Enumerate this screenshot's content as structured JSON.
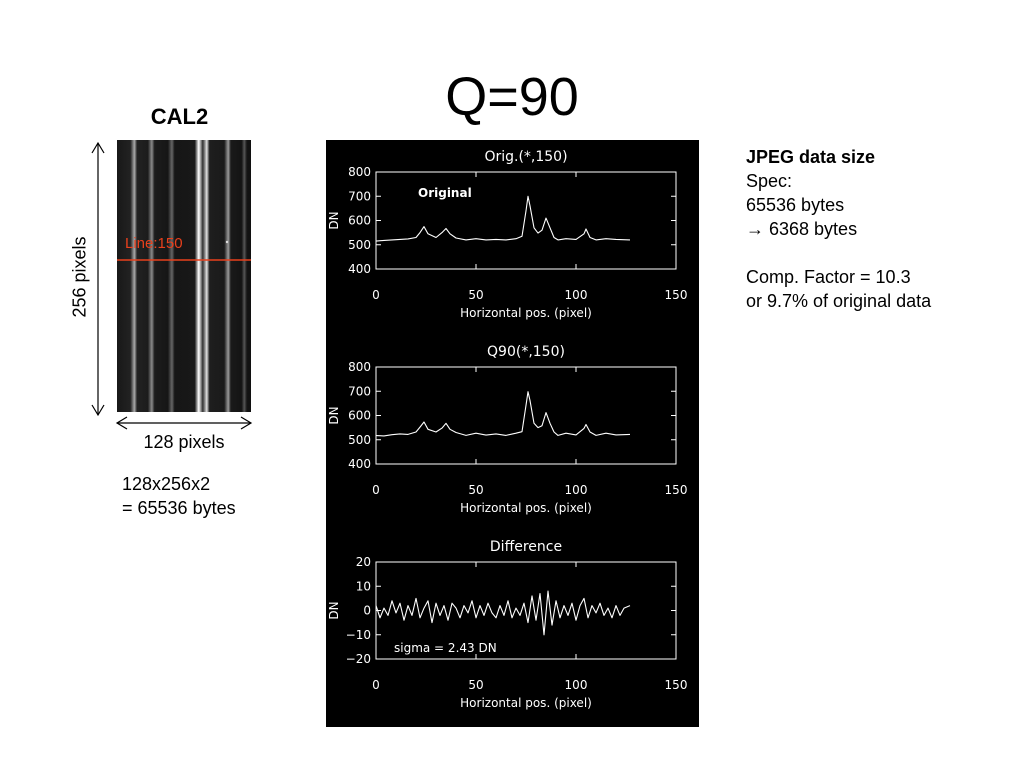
{
  "title": "Q=90",
  "cal_image": {
    "title": "CAL2",
    "line_label": "Line:150",
    "height_label": "256 pixels",
    "width_label": "128 pixels",
    "size_note_lines": [
      "128x256x2",
      "= 65536 bytes"
    ]
  },
  "info": {
    "heading": "JPEG data size",
    "spec_label": "Spec:",
    "spec_bytes": "65536 bytes",
    "compressed": "→ 6368 bytes",
    "comp_factor": "Comp. Factor  = 10.3",
    "percent": "or 9.7% of original data"
  },
  "colors": {
    "line_marker": "#e8401c",
    "plot_bg": "#000000",
    "plot_fg": "#ffffff"
  },
  "chart_data": [
    {
      "type": "line",
      "title": "Orig.(*,150)",
      "annotation": "Original",
      "xlabel": "Horizontal pos. (pixel)",
      "ylabel": "DN",
      "xlim": [
        0,
        150
      ],
      "ylim": [
        400,
        800
      ],
      "xticks": [
        0,
        50,
        100,
        150
      ],
      "yticks": [
        400,
        500,
        600,
        700,
        800
      ],
      "series": [
        {
          "x": [
            0,
            4,
            8,
            12,
            16,
            20,
            22,
            24,
            26,
            30,
            33,
            35,
            37,
            40,
            45,
            50,
            55,
            60,
            65,
            70,
            73,
            75,
            76,
            77,
            79,
            81,
            83,
            85,
            87,
            89,
            91,
            95,
            100,
            104,
            105,
            107,
            110,
            115,
            120,
            127
          ],
          "y": [
            515,
            518,
            520,
            522,
            524,
            530,
            550,
            575,
            545,
            530,
            550,
            567,
            545,
            528,
            520,
            525,
            520,
            522,
            520,
            525,
            535,
            640,
            700,
            660,
            570,
            548,
            560,
            610,
            570,
            530,
            520,
            525,
            522,
            545,
            565,
            530,
            520,
            525,
            522,
            520
          ]
        }
      ]
    },
    {
      "type": "line",
      "title": "Q90(*,150)",
      "xlabel": "Horizontal pos. (pixel)",
      "ylabel": "DN",
      "xlim": [
        0,
        150
      ],
      "ylim": [
        400,
        800
      ],
      "xticks": [
        0,
        50,
        100,
        150
      ],
      "yticks": [
        400,
        500,
        600,
        700,
        800
      ],
      "series": [
        {
          "x": [
            0,
            4,
            8,
            12,
            16,
            20,
            22,
            24,
            26,
            30,
            33,
            35,
            37,
            40,
            45,
            50,
            55,
            60,
            65,
            70,
            73,
            75,
            76,
            77,
            79,
            81,
            83,
            85,
            87,
            89,
            91,
            95,
            100,
            104,
            105,
            107,
            110,
            115,
            120,
            127
          ],
          "y": [
            517,
            516,
            521,
            524,
            522,
            532,
            552,
            573,
            543,
            532,
            548,
            568,
            543,
            530,
            518,
            527,
            519,
            524,
            518,
            527,
            533,
            642,
            698,
            662,
            568,
            550,
            558,
            612,
            568,
            532,
            518,
            527,
            520,
            547,
            563,
            532,
            518,
            527,
            520,
            522
          ]
        }
      ]
    },
    {
      "type": "line",
      "title": "Difference",
      "annotation": "sigma =    2.43 DN",
      "xlabel": "Horizontal pos. (pixel)",
      "ylabel": "DN",
      "xlim": [
        0,
        150
      ],
      "ylim": [
        -20,
        20
      ],
      "xticks": [
        0,
        50,
        100,
        150
      ],
      "yticks": [
        -20,
        -10,
        0,
        10,
        20
      ],
      "yticklabels": [
        "−20",
        "−10",
        "0",
        "10",
        "20"
      ],
      "series": [
        {
          "x": [
            0,
            2,
            4,
            6,
            8,
            10,
            12,
            14,
            16,
            18,
            20,
            22,
            24,
            26,
            28,
            30,
            32,
            34,
            36,
            38,
            40,
            42,
            44,
            46,
            48,
            50,
            52,
            54,
            56,
            58,
            60,
            62,
            64,
            66,
            68,
            70,
            72,
            74,
            76,
            78,
            80,
            82,
            84,
            86,
            88,
            90,
            92,
            94,
            96,
            98,
            100,
            102,
            104,
            106,
            108,
            110,
            112,
            114,
            116,
            118,
            120,
            122,
            124,
            127
          ],
          "y": [
            2,
            -3,
            1,
            -2,
            4,
            -1,
            3,
            -4,
            2,
            -2,
            5,
            -3,
            1,
            4,
            -5,
            3,
            -2,
            2,
            -4,
            3,
            1,
            -3,
            2,
            -1,
            4,
            -3,
            2,
            -2,
            3,
            -1,
            -3,
            2,
            -2,
            4,
            -3,
            1,
            -2,
            3,
            -5,
            6,
            -4,
            7,
            -10,
            8,
            -6,
            4,
            -3,
            2,
            -2,
            3,
            -4,
            2,
            5,
            -3,
            2,
            -1,
            3,
            -2,
            1,
            -3,
            2,
            -2,
            1,
            2
          ]
        }
      ]
    }
  ]
}
